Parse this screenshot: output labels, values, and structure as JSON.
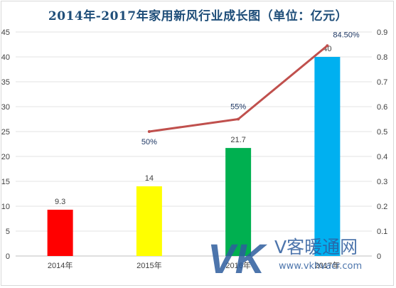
{
  "chart_data": {
    "type": "bar",
    "title": "2014年-2017年家用新风行业成长图（单位：亿元）",
    "categories": [
      "2014年",
      "2015年",
      "2016年",
      "2017年"
    ],
    "values": [
      9.3,
      14,
      21.7,
      40
    ],
    "value_labels": [
      "9.3",
      "14",
      "21.7",
      "40"
    ],
    "bar_colors": [
      "#ff0000",
      "#ffff00",
      "#00b050",
      "#00b0f0"
    ],
    "ylim": [
      0,
      45
    ],
    "y_ticks": [
      0,
      5,
      10,
      15,
      20,
      25,
      30,
      35,
      40,
      45
    ],
    "line_series": {
      "x_categories": [
        "2015年",
        "2016年",
        "2017年"
      ],
      "values": [
        0.5,
        0.55,
        0.845
      ],
      "labels": [
        "50%",
        "55%",
        "84.50%"
      ],
      "color": "#c0504d",
      "axis": "right"
    },
    "y2lim": [
      0,
      0.9
    ],
    "y2_ticks": [
      "0",
      "0.1",
      "0.2",
      "0.3",
      "0.4",
      "0.5",
      "0.6",
      "0.7",
      "0.8",
      "0.9"
    ],
    "grid": true,
    "legend": "none"
  },
  "watermark": {
    "letters": "VK",
    "brand_cn": "V客暖通网",
    "url": "www.vkhvacr.com"
  }
}
